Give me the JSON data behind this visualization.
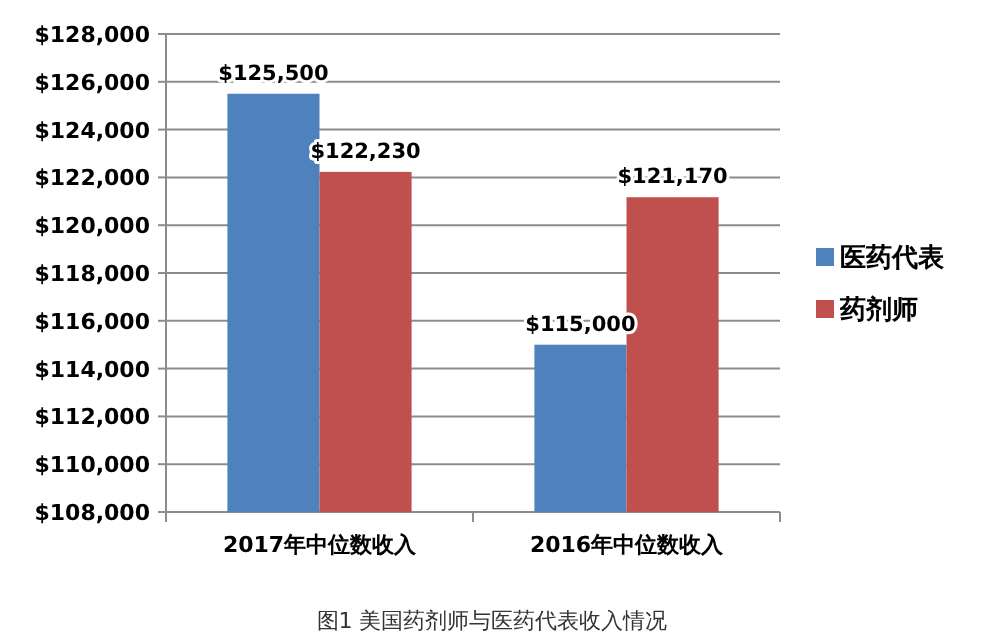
{
  "chart_data": {
    "type": "bar",
    "categories": [
      "2017年中位数收入",
      "2016年中位数收入"
    ],
    "series": [
      {
        "name": "医药代表",
        "color": "#4f81bd",
        "values": [
          125500,
          115000
        ],
        "value_labels": [
          "$125,500",
          "$115,000"
        ]
      },
      {
        "name": "药剂师",
        "color": "#c0504d",
        "values": [
          122230,
          121170
        ],
        "value_labels": [
          "$122,230",
          "$121,170"
        ]
      }
    ],
    "ylim": [
      108000,
      128000
    ],
    "yticks": [
      {
        "value": 108000,
        "label": "$108,000"
      },
      {
        "value": 110000,
        "label": "$110,000"
      },
      {
        "value": 112000,
        "label": "$112,000"
      },
      {
        "value": 114000,
        "label": "$114,000"
      },
      {
        "value": 116000,
        "label": "$116,000"
      },
      {
        "value": 118000,
        "label": "$118,000"
      },
      {
        "value": 120000,
        "label": "$120,000"
      },
      {
        "value": 122000,
        "label": "$122,000"
      },
      {
        "value": 124000,
        "label": "$124,000"
      },
      {
        "value": 126000,
        "label": "$126,000"
      },
      {
        "value": 128000,
        "label": "$128,000"
      }
    ],
    "grid": "y",
    "legend": "right",
    "annotations": [
      "图1 美国药剂师与医药代表收入情况"
    ]
  }
}
